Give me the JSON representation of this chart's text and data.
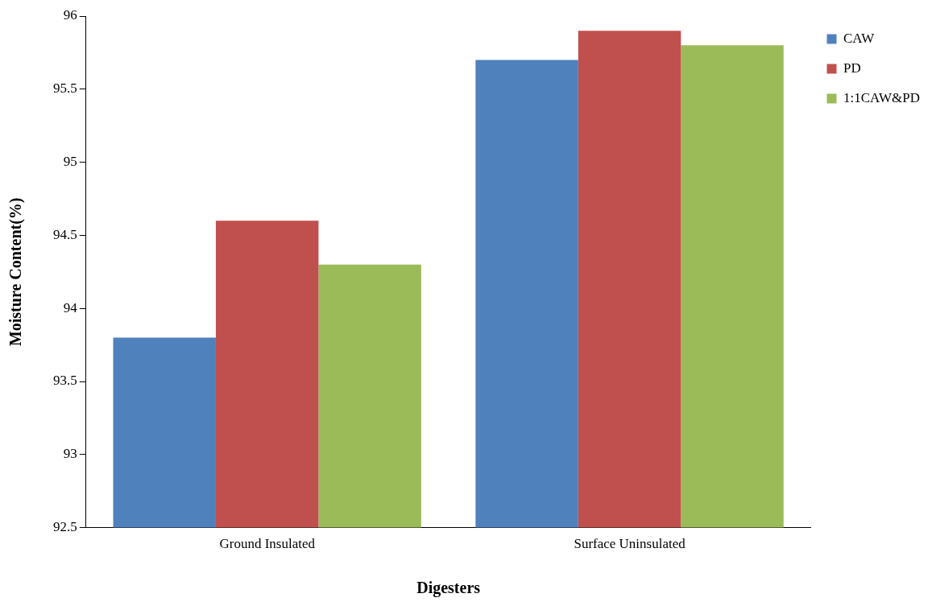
{
  "chart_data": {
    "type": "bar",
    "xlabel": "Digesters",
    "ylabel": "Moisture Content(%)",
    "categories": [
      "Ground Insulated",
      "Surface Uninsulated"
    ],
    "series": [
      {
        "name": "CAW",
        "color": "#4f81bd",
        "values": [
          93.8,
          95.7
        ]
      },
      {
        "name": "PD",
        "color": "#c0504d",
        "values": [
          94.6,
          95.9
        ]
      },
      {
        "name": "1:1CAW&PD",
        "color": "#9bbb59",
        "values": [
          94.3,
          95.8
        ]
      }
    ],
    "ylim": [
      92.5,
      96
    ],
    "yticks": [
      92.5,
      93,
      93.5,
      94,
      94.5,
      95,
      95.5,
      96
    ],
    "grid": false,
    "legend": "top right"
  }
}
